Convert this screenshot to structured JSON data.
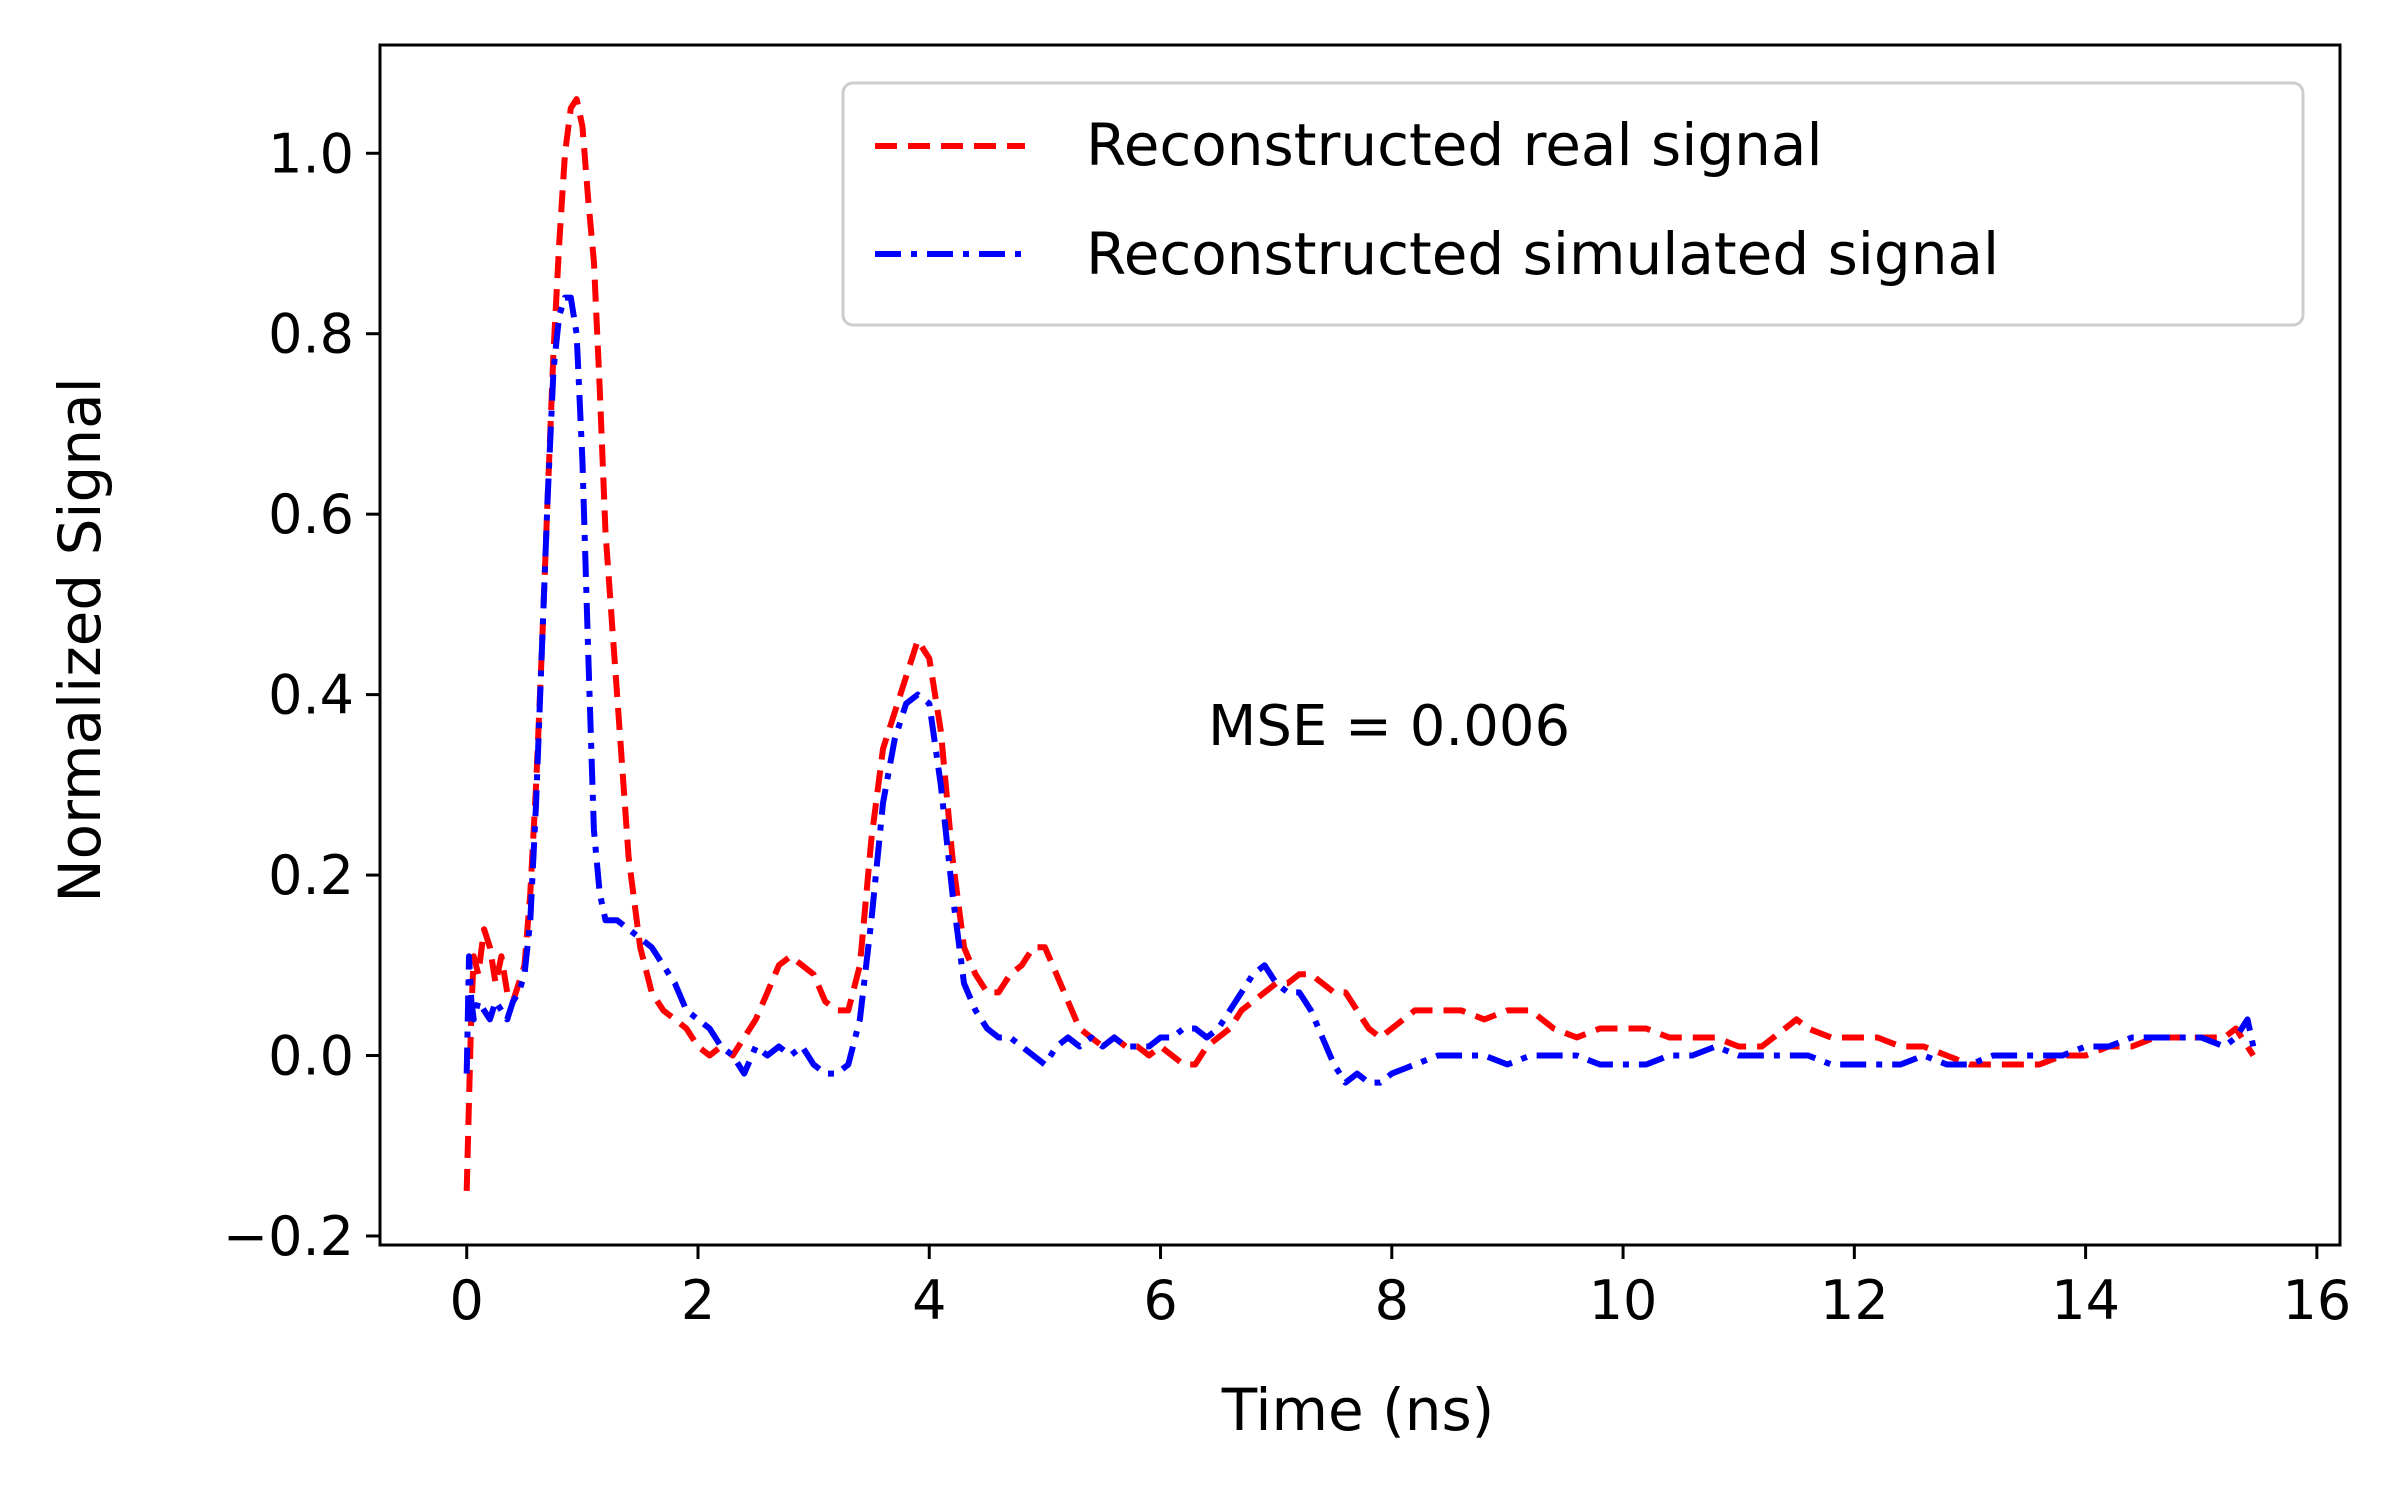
{
  "chart_data": {
    "type": "line",
    "title": "",
    "xlabel": "Time (ns)",
    "ylabel": "Normalized Signal",
    "xlim": [
      -0.75,
      16.2
    ],
    "ylim": [
      -0.21,
      1.12
    ],
    "xticks": [
      0,
      2,
      4,
      6,
      8,
      10,
      12,
      14,
      16
    ],
    "xtick_labels": [
      "0",
      "2",
      "4",
      "6",
      "8",
      "10",
      "12",
      "14",
      "16"
    ],
    "yticks": [
      -0.2,
      0.0,
      0.2,
      0.4,
      0.6,
      0.8,
      1.0
    ],
    "ytick_labels": [
      "−0.2",
      "0.0",
      "0.2",
      "0.4",
      "0.6",
      "0.8",
      "1.0"
    ],
    "grid": false,
    "legend_position": "top-right",
    "annotation": "MSE = 0.006",
    "series": [
      {
        "name": "Reconstructed real signal",
        "color": "#ff0000",
        "style": "dashed",
        "x": [
          0.0,
          0.02,
          0.04,
          0.06,
          0.1,
          0.15,
          0.2,
          0.25,
          0.3,
          0.35,
          0.4,
          0.45,
          0.5,
          0.55,
          0.6,
          0.65,
          0.7,
          0.75,
          0.8,
          0.85,
          0.9,
          0.95,
          1.0,
          1.05,
          1.1,
          1.15,
          1.2,
          1.3,
          1.4,
          1.5,
          1.6,
          1.7,
          1.8,
          1.9,
          2.0,
          2.1,
          2.2,
          2.3,
          2.4,
          2.5,
          2.6,
          2.7,
          2.8,
          2.9,
          3.0,
          3.1,
          3.2,
          3.3,
          3.4,
          3.5,
          3.6,
          3.7,
          3.8,
          3.9,
          4.0,
          4.1,
          4.2,
          4.3,
          4.4,
          4.5,
          4.6,
          4.7,
          4.8,
          4.9,
          5.0,
          5.1,
          5.2,
          5.3,
          5.4,
          5.5,
          5.6,
          5.7,
          5.8,
          5.9,
          6.0,
          6.1,
          6.2,
          6.3,
          6.4,
          6.5,
          6.6,
          6.7,
          6.8,
          6.9,
          7.0,
          7.1,
          7.2,
          7.3,
          7.4,
          7.5,
          7.6,
          7.7,
          7.8,
          7.9,
          8.0,
          8.2,
          8.4,
          8.6,
          8.8,
          9.0,
          9.2,
          9.4,
          9.6,
          9.8,
          10.0,
          10.2,
          10.4,
          10.6,
          10.8,
          11.0,
          11.2,
          11.4,
          11.5,
          11.6,
          11.8,
          12.0,
          12.2,
          12.4,
          12.6,
          12.8,
          13.0,
          13.2,
          13.4,
          13.6,
          13.8,
          14.0,
          14.2,
          14.4,
          14.6,
          14.8,
          15.0,
          15.2,
          15.3,
          15.4,
          15.45
        ],
        "y": [
          -0.15,
          -0.05,
          0.05,
          0.11,
          0.09,
          0.14,
          0.12,
          0.08,
          0.11,
          0.07,
          0.06,
          0.08,
          0.1,
          0.18,
          0.3,
          0.45,
          0.62,
          0.78,
          0.9,
          1.0,
          1.05,
          1.06,
          1.03,
          0.95,
          0.88,
          0.74,
          0.58,
          0.4,
          0.22,
          0.12,
          0.07,
          0.05,
          0.04,
          0.03,
          0.01,
          0.0,
          0.01,
          0.0,
          0.02,
          0.04,
          0.07,
          0.1,
          0.11,
          0.1,
          0.09,
          0.06,
          0.05,
          0.05,
          0.1,
          0.24,
          0.34,
          0.38,
          0.42,
          0.46,
          0.44,
          0.36,
          0.22,
          0.12,
          0.09,
          0.07,
          0.07,
          0.09,
          0.1,
          0.12,
          0.12,
          0.09,
          0.06,
          0.03,
          0.02,
          0.01,
          0.02,
          0.01,
          0.01,
          0.0,
          0.01,
          0.0,
          -0.01,
          -0.01,
          0.01,
          0.02,
          0.03,
          0.05,
          0.06,
          0.07,
          0.08,
          0.08,
          0.09,
          0.09,
          0.08,
          0.07,
          0.07,
          0.05,
          0.03,
          0.02,
          0.03,
          0.05,
          0.05,
          0.05,
          0.04,
          0.05,
          0.05,
          0.03,
          0.02,
          0.03,
          0.03,
          0.03,
          0.02,
          0.02,
          0.02,
          0.01,
          0.01,
          0.03,
          0.04,
          0.03,
          0.02,
          0.02,
          0.02,
          0.01,
          0.01,
          0.0,
          -0.01,
          -0.01,
          -0.01,
          -0.01,
          0.0,
          0.0,
          0.01,
          0.01,
          0.02,
          0.02,
          0.02,
          0.02,
          0.03,
          0.01,
          0.0
        ]
      },
      {
        "name": "Reconstructed simulated signal",
        "color": "#0000ff",
        "style": "dashdot",
        "x": [
          0.0,
          0.02,
          0.04,
          0.06,
          0.1,
          0.15,
          0.2,
          0.25,
          0.3,
          0.35,
          0.4,
          0.45,
          0.5,
          0.55,
          0.6,
          0.65,
          0.7,
          0.75,
          0.8,
          0.85,
          0.9,
          0.95,
          1.0,
          1.05,
          1.1,
          1.15,
          1.2,
          1.3,
          1.4,
          1.5,
          1.6,
          1.7,
          1.8,
          1.9,
          2.0,
          2.1,
          2.2,
          2.3,
          2.4,
          2.5,
          2.6,
          2.7,
          2.8,
          2.9,
          3.0,
          3.1,
          3.2,
          3.3,
          3.4,
          3.5,
          3.6,
          3.7,
          3.8,
          3.9,
          4.0,
          4.1,
          4.2,
          4.3,
          4.4,
          4.5,
          4.6,
          4.7,
          4.8,
          4.9,
          5.0,
          5.1,
          5.2,
          5.3,
          5.4,
          5.5,
          5.6,
          5.7,
          5.8,
          5.9,
          6.0,
          6.1,
          6.2,
          6.3,
          6.4,
          6.5,
          6.6,
          6.7,
          6.8,
          6.9,
          7.0,
          7.1,
          7.2,
          7.3,
          7.4,
          7.5,
          7.6,
          7.7,
          7.8,
          7.9,
          8.0,
          8.2,
          8.4,
          8.6,
          8.8,
          9.0,
          9.2,
          9.4,
          9.6,
          9.8,
          10.0,
          10.2,
          10.4,
          10.6,
          10.8,
          11.0,
          11.2,
          11.4,
          11.5,
          11.6,
          11.8,
          12.0,
          12.2,
          12.4,
          12.6,
          12.8,
          13.0,
          13.2,
          13.4,
          13.6,
          13.8,
          14.0,
          14.2,
          14.4,
          14.6,
          14.8,
          15.0,
          15.2,
          15.3,
          15.4,
          15.45
        ],
        "y": [
          -0.02,
          0.11,
          0.06,
          0.04,
          0.06,
          0.05,
          0.04,
          0.06,
          0.05,
          0.04,
          0.06,
          0.07,
          0.09,
          0.15,
          0.28,
          0.45,
          0.62,
          0.76,
          0.82,
          0.84,
          0.84,
          0.8,
          0.66,
          0.45,
          0.25,
          0.18,
          0.15,
          0.15,
          0.14,
          0.13,
          0.12,
          0.1,
          0.08,
          0.05,
          0.04,
          0.03,
          0.01,
          0.0,
          -0.02,
          0.01,
          0.0,
          0.01,
          0.0,
          0.01,
          -0.01,
          -0.02,
          -0.02,
          -0.01,
          0.04,
          0.15,
          0.28,
          0.35,
          0.39,
          0.4,
          0.39,
          0.3,
          0.18,
          0.08,
          0.05,
          0.03,
          0.02,
          0.02,
          0.01,
          0.0,
          -0.01,
          0.01,
          0.02,
          0.01,
          0.02,
          0.01,
          0.02,
          0.01,
          0.01,
          0.01,
          0.02,
          0.02,
          0.03,
          0.03,
          0.02,
          0.03,
          0.05,
          0.07,
          0.09,
          0.1,
          0.08,
          0.07,
          0.07,
          0.05,
          0.02,
          -0.01,
          -0.03,
          -0.02,
          -0.03,
          -0.03,
          -0.02,
          -0.01,
          0.0,
          0.0,
          0.0,
          -0.01,
          0.0,
          0.0,
          0.0,
          -0.01,
          -0.01,
          -0.01,
          0.0,
          0.0,
          0.01,
          0.0,
          0.0,
          0.0,
          0.0,
          0.0,
          -0.01,
          -0.01,
          -0.01,
          -0.01,
          0.0,
          -0.01,
          -0.01,
          0.0,
          0.0,
          0.0,
          0.0,
          0.01,
          0.01,
          0.02,
          0.02,
          0.02,
          0.02,
          0.01,
          0.02,
          0.04,
          0.01
        ]
      }
    ]
  }
}
